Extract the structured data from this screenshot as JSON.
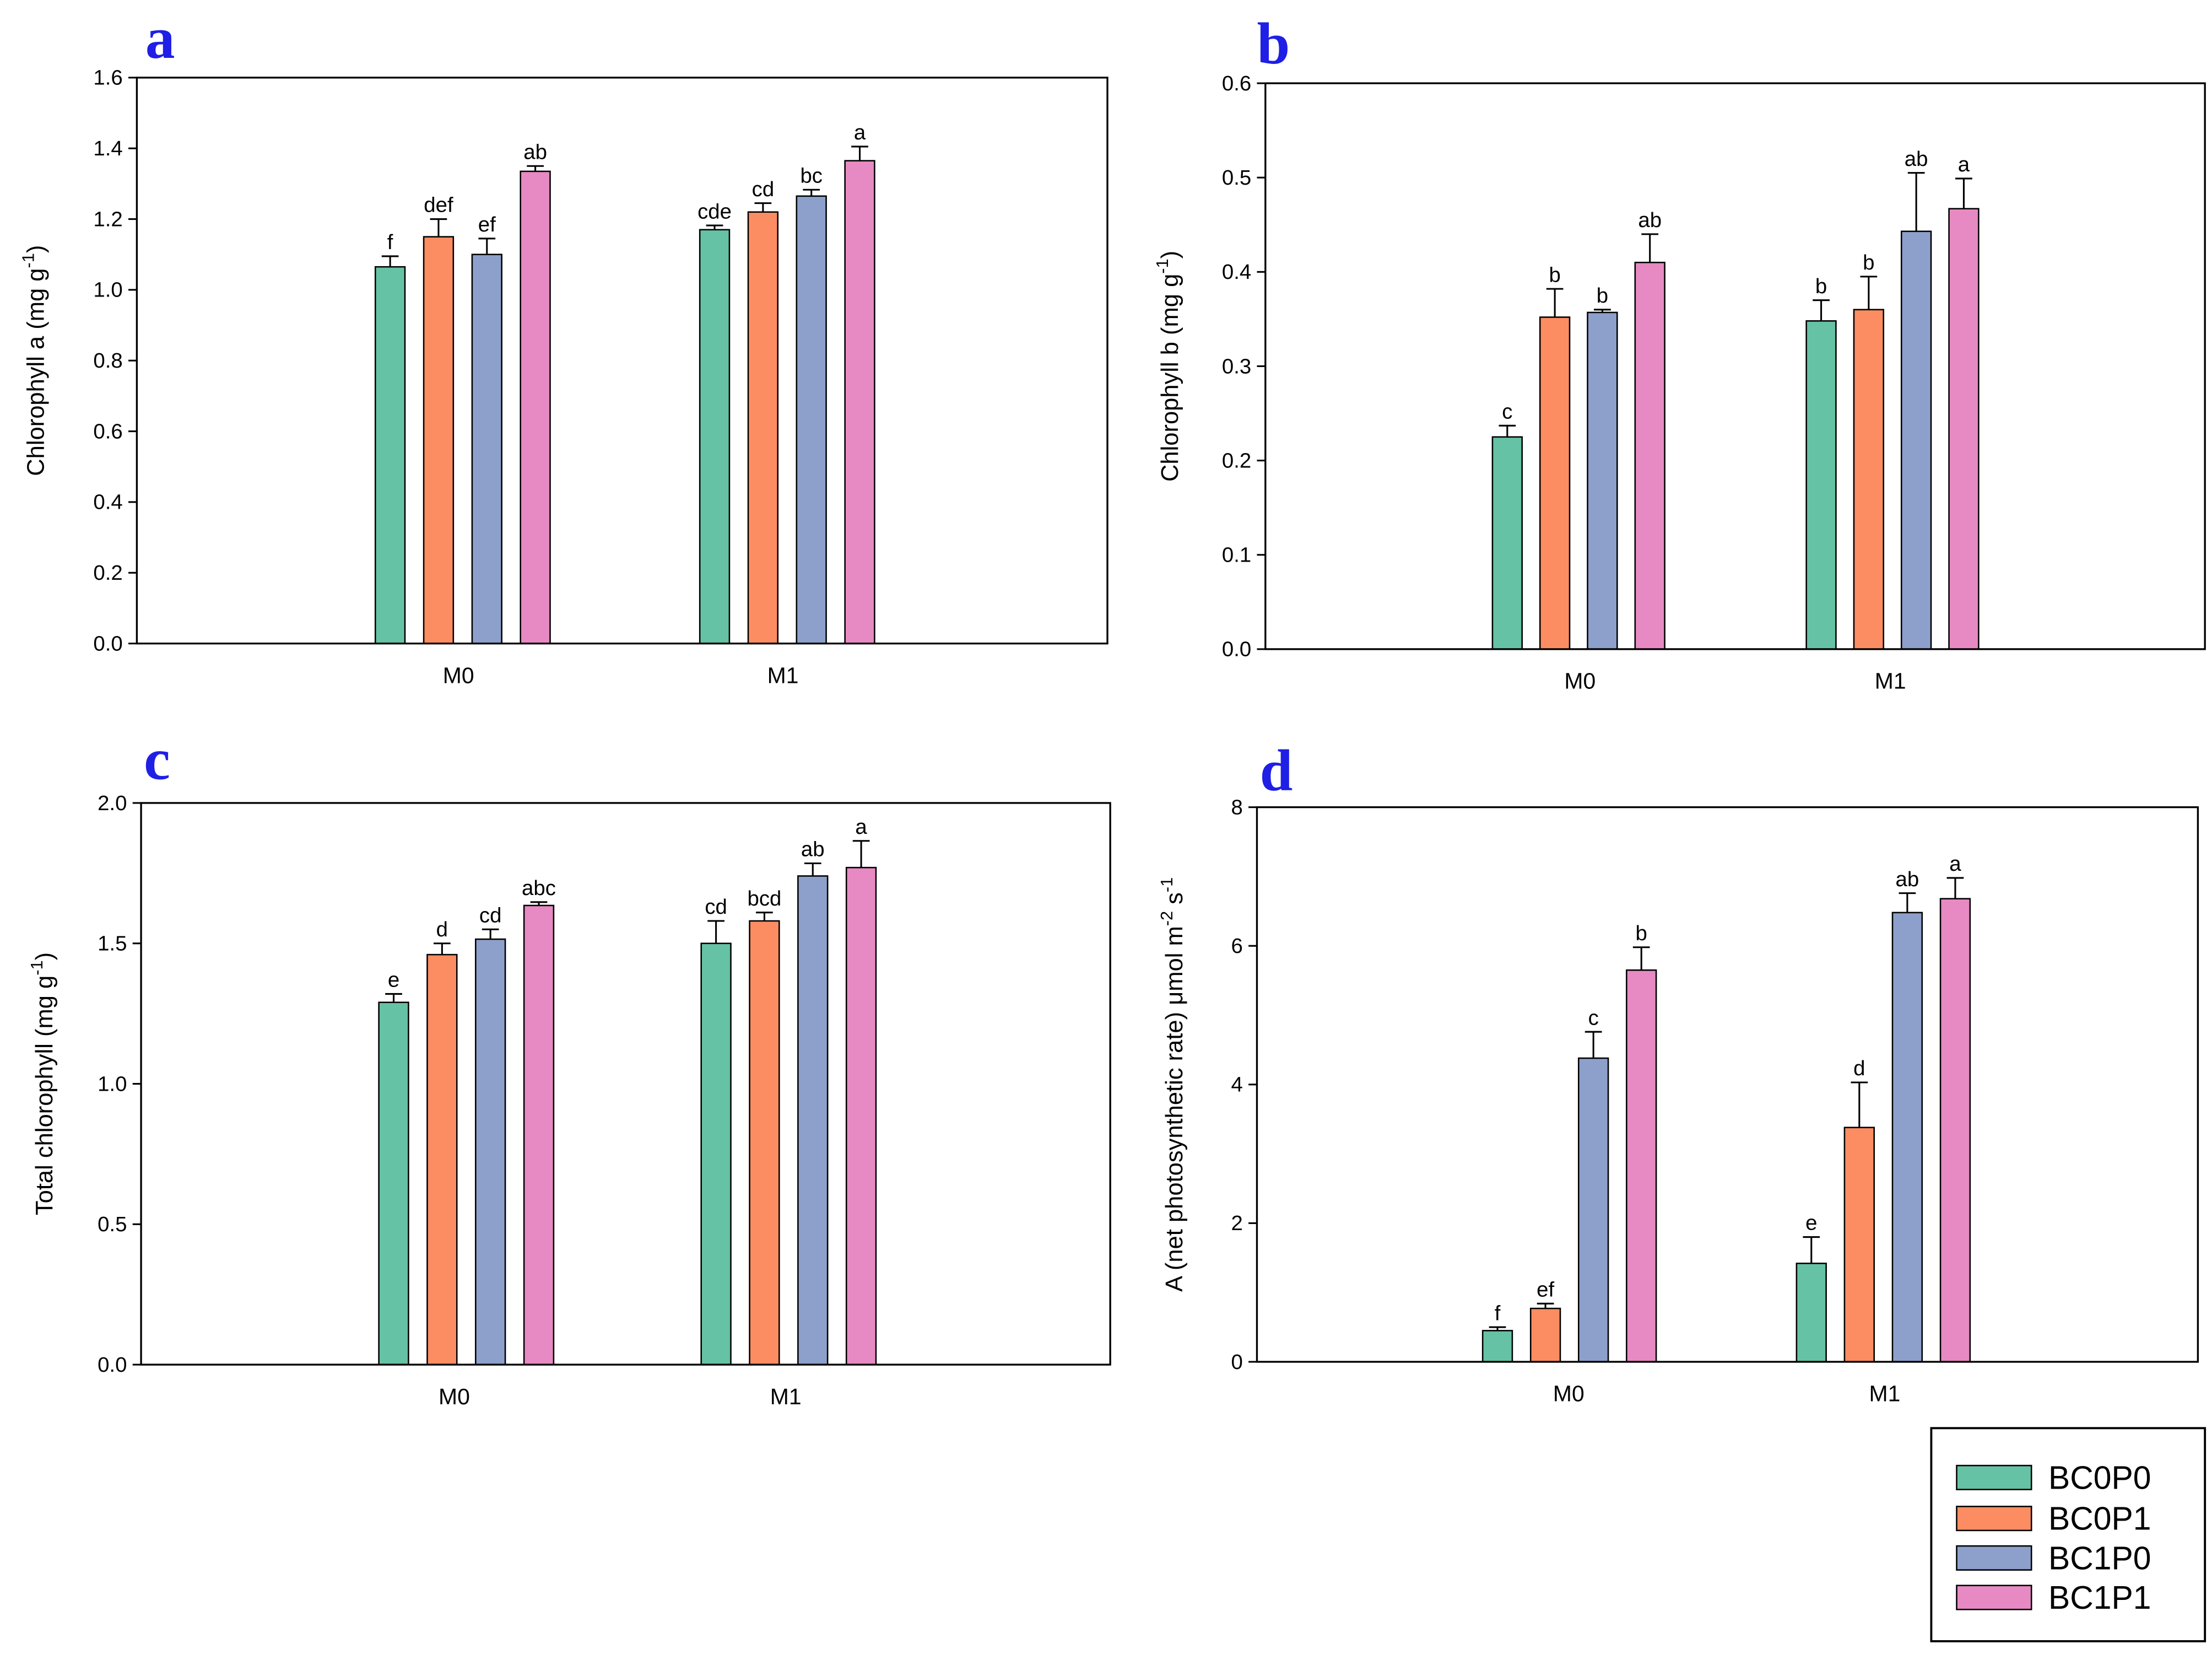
{
  "chart_data": [
    {
      "type": "bar",
      "panel": "a",
      "categories": [
        "M0",
        "M1"
      ],
      "ylabel": [
        {
          "text": "Chlorophyll a (mg g"
        },
        {
          "text": "-1",
          "sup": true
        },
        {
          "text": ")"
        }
      ],
      "ylim": [
        0,
        1.6
      ],
      "yticks": [
        "0.0",
        "0.2",
        "0.4",
        "0.6",
        "0.8",
        "1.0",
        "1.2",
        "1.4",
        "1.6"
      ],
      "series": [
        {
          "values": [
            1.065,
            1.17
          ],
          "errors": [
            0.03,
            0.012
          ],
          "letters": [
            "f",
            "cde"
          ]
        },
        {
          "values": [
            1.15,
            1.22
          ],
          "errors": [
            0.05,
            0.025
          ],
          "letters": [
            "def",
            "cd"
          ]
        },
        {
          "values": [
            1.1,
            1.265
          ],
          "errors": [
            0.045,
            0.018
          ],
          "letters": [
            "ef",
            "bc"
          ]
        },
        {
          "values": [
            1.335,
            1.365
          ],
          "errors": [
            0.015,
            0.04
          ],
          "letters": [
            "ab",
            "a"
          ]
        }
      ]
    },
    {
      "type": "bar",
      "panel": "b",
      "categories": [
        "M0",
        "M1"
      ],
      "ylabel": [
        {
          "text": "Chlorophyll b (mg g"
        },
        {
          "text": "-1",
          "sup": true
        },
        {
          "text": ")"
        }
      ],
      "ylim": [
        0,
        0.6
      ],
      "yticks": [
        "0.0",
        "0.1",
        "0.2",
        "0.3",
        "0.4",
        "0.5",
        "0.6"
      ],
      "series": [
        {
          "values": [
            0.225,
            0.348
          ],
          "errors": [
            0.012,
            0.022
          ],
          "letters": [
            "c",
            "b"
          ]
        },
        {
          "values": [
            0.352,
            0.36
          ],
          "errors": [
            0.03,
            0.035
          ],
          "letters": [
            "b",
            "b"
          ]
        },
        {
          "values": [
            0.357,
            0.443
          ],
          "errors": [
            0.003,
            0.062
          ],
          "letters": [
            "b",
            "ab"
          ]
        },
        {
          "values": [
            0.41,
            0.467
          ],
          "errors": [
            0.03,
            0.032
          ],
          "letters": [
            "ab",
            "a"
          ]
        }
      ]
    },
    {
      "type": "bar",
      "panel": "c",
      "categories": [
        "M0",
        "M1"
      ],
      "ylabel": [
        {
          "text": "Total chlorophyll (mg g"
        },
        {
          "text": "-1",
          "sup": true
        },
        {
          "text": ")"
        }
      ],
      "ylim": [
        0,
        2.0
      ],
      "yticks": [
        "0.0",
        "0.5",
        "1.0",
        "1.5",
        "2.0"
      ],
      "series": [
        {
          "values": [
            1.29,
            1.5
          ],
          "errors": [
            0.03,
            0.08
          ],
          "letters": [
            "e",
            "cd"
          ]
        },
        {
          "values": [
            1.46,
            1.58
          ],
          "errors": [
            0.04,
            0.03
          ],
          "letters": [
            "d",
            "bcd"
          ]
        },
        {
          "values": [
            1.515,
            1.74
          ],
          "errors": [
            0.035,
            0.045
          ],
          "letters": [
            "cd",
            "ab"
          ]
        },
        {
          "values": [
            1.635,
            1.77
          ],
          "errors": [
            0.012,
            0.095
          ],
          "letters": [
            "abc",
            "a"
          ]
        }
      ]
    },
    {
      "type": "bar",
      "panel": "d",
      "categories": [
        "M0",
        "M1"
      ],
      "ylabel": [
        {
          "text": "A (net photosynthetic rate) μmol m"
        },
        {
          "text": "-2",
          "sup": true
        },
        {
          "text": " s"
        },
        {
          "text": "-1",
          "sup": true
        }
      ],
      "ylim": [
        0,
        8
      ],
      "yticks": [
        "0",
        "2",
        "4",
        "6",
        "8"
      ],
      "series": [
        {
          "values": [
            0.45,
            1.42
          ],
          "errors": [
            0.05,
            0.38
          ],
          "letters": [
            "f",
            "e"
          ]
        },
        {
          "values": [
            0.77,
            3.38
          ],
          "errors": [
            0.07,
            0.65
          ],
          "letters": [
            "ef",
            "d"
          ]
        },
        {
          "values": [
            4.38,
            6.48
          ],
          "errors": [
            0.38,
            0.28
          ],
          "letters": [
            "c",
            "ab"
          ]
        },
        {
          "values": [
            5.65,
            6.68
          ],
          "errors": [
            0.33,
            0.3
          ],
          "letters": [
            "b",
            "a"
          ]
        }
      ]
    }
  ],
  "legend": {
    "entries": [
      {
        "name": "BC0P0",
        "color": "#66c2a5"
      },
      {
        "name": "BC0P1",
        "color": "#fc8d62"
      },
      {
        "name": "BC1P0",
        "color": "#8da0cb"
      },
      {
        "name": "BC1P1",
        "color": "#e78ac3"
      }
    ]
  }
}
